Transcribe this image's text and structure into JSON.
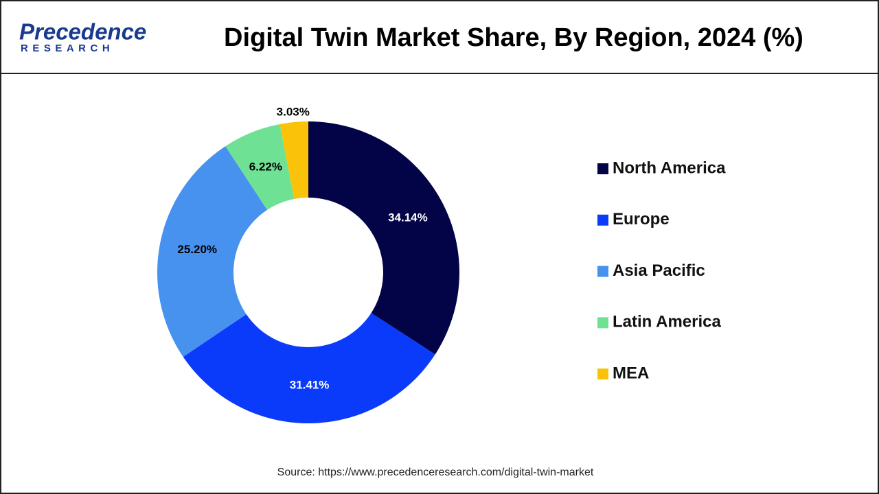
{
  "brand": {
    "name": "Precedence",
    "sub": "RESEARCH"
  },
  "chart_data": {
    "type": "donut",
    "title": "Digital Twin Market Share, By Region, 2024 (%)",
    "categories": [
      "North America",
      "Europe",
      "Asia Pacific",
      "Latin America",
      "MEA"
    ],
    "values": [
      34.14,
      31.41,
      25.2,
      6.22,
      3.03
    ],
    "value_labels": [
      "34.14%",
      "31.41%",
      "25.20%",
      "6.22%",
      "3.03%"
    ],
    "colors": [
      "#020447",
      "#0b3bfa",
      "#4792ef",
      "#6fe195",
      "#fbc20a"
    ],
    "legend": "right",
    "source": "Source: https://www.precedenceresearch.com/digital-twin-market"
  }
}
